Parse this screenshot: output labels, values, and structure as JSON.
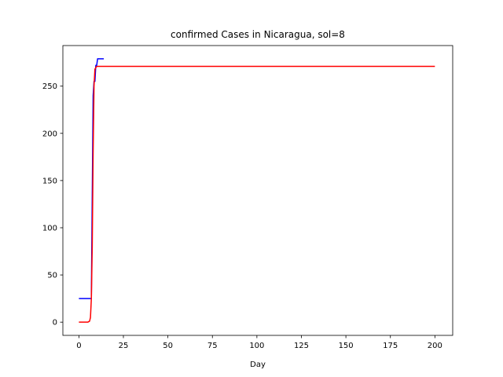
{
  "chart_data": {
    "type": "line",
    "title": "confirmed Cases in Nicaragua, sol=8",
    "xlabel": "Day",
    "ylabel": "",
    "xlim": [
      -9,
      210
    ],
    "ylim": [
      -14,
      293
    ],
    "x_ticks": [
      0,
      25,
      50,
      75,
      100,
      125,
      150,
      175,
      200
    ],
    "y_ticks": [
      0,
      50,
      100,
      150,
      200,
      250
    ],
    "grid": false,
    "series": [
      {
        "color": "#0000ff",
        "points": [
          [
            0,
            25
          ],
          [
            1,
            25
          ],
          [
            2,
            25
          ],
          [
            3,
            25
          ],
          [
            4,
            25
          ],
          [
            5,
            25
          ],
          [
            6,
            25
          ],
          [
            7,
            25
          ],
          [
            8,
            240
          ],
          [
            8.5,
            255
          ],
          [
            9,
            255
          ],
          [
            9.5,
            272
          ],
          [
            10,
            272
          ],
          [
            10.5,
            279
          ],
          [
            11,
            279
          ],
          [
            12,
            279
          ],
          [
            13,
            279
          ],
          [
            14,
            279
          ]
        ]
      },
      {
        "color": "#ff0000",
        "points": [
          [
            0,
            0
          ],
          [
            3,
            0
          ],
          [
            5,
            0
          ],
          [
            6,
            1
          ],
          [
            6.5,
            5
          ],
          [
            7,
            25
          ],
          [
            7.5,
            80
          ],
          [
            8,
            180
          ],
          [
            8.5,
            250
          ],
          [
            9,
            268
          ],
          [
            10,
            271
          ],
          [
            12,
            271
          ],
          [
            25,
            271
          ],
          [
            50,
            271
          ],
          [
            100,
            271
          ],
          [
            150,
            271
          ],
          [
            200,
            271
          ]
        ]
      }
    ]
  }
}
